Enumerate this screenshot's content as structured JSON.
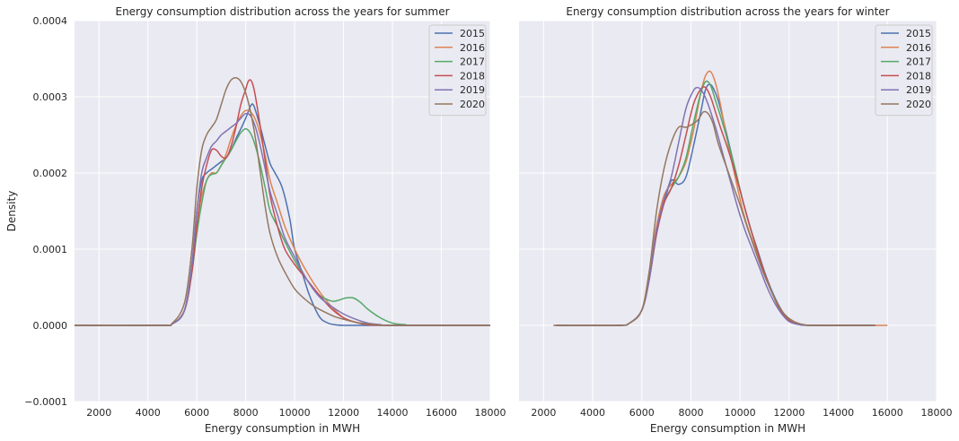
{
  "chart_data": [
    {
      "type": "line",
      "title": "Energy consumption distribution across the years for summer",
      "xlabel": "Energy consumption in MWH",
      "ylabel": "Density",
      "xlim": [
        1000,
        18000
      ],
      "ylim": [
        -0.0001,
        0.0004
      ],
      "xticks": [
        "2000",
        "4000",
        "6000",
        "8000",
        "10000",
        "12000",
        "14000",
        "16000",
        "18000"
      ],
      "yticks": [
        "−0.0001",
        "0.0000",
        "0.0001",
        "0.0002",
        "0.0003",
        "0.0004"
      ],
      "legend_position": "top-right",
      "grid": true,
      "series": [
        {
          "name": "2015",
          "color": "#4c72b0",
          "x": [
            1000,
            4500,
            5000,
            5500,
            5800,
            6000,
            6200,
            6400,
            6600,
            6800,
            7000,
            7200,
            7400,
            7600,
            7800,
            8000,
            8200,
            8300,
            8400,
            8600,
            8800,
            9000,
            9200,
            9500,
            9800,
            10000,
            10300,
            10600,
            11000,
            11300,
            11600,
            12000,
            12500,
            13000,
            14000,
            18000
          ],
          "y": [
            0,
            0,
            2e-06,
            2e-05,
            8e-05,
            0.00015,
            0.00019,
            0.0002,
            0.000205,
            0.00021,
            0.000215,
            0.00022,
            0.00023,
            0.000245,
            0.000258,
            0.000272,
            0.000288,
            0.00029,
            0.000282,
            0.00026,
            0.000235,
            0.000212,
            0.0002,
            0.00018,
            0.00014,
            0.0001,
            7e-05,
            4e-05,
            1.2e-05,
            4e-06,
            1e-06,
            0,
            0,
            0,
            0,
            0
          ]
        },
        {
          "name": "2016",
          "color": "#dd8452",
          "x": [
            1000,
            4500,
            5000,
            5500,
            5800,
            6000,
            6200,
            6400,
            6600,
            6800,
            7000,
            7200,
            7400,
            7600,
            7800,
            8000,
            8200,
            8400,
            8600,
            8800,
            9000,
            9300,
            9600,
            10000,
            10500,
            11000,
            11500,
            12000,
            12500,
            13000,
            14000,
            18000
          ],
          "y": [
            0,
            0,
            2e-06,
            2e-05,
            7e-05,
            0.00013,
            0.00017,
            0.00019,
            0.0002,
            0.0002,
            0.00021,
            0.000225,
            0.000245,
            0.000262,
            0.000275,
            0.000282,
            0.00028,
            0.00027,
            0.00025,
            0.000222,
            0.00019,
            0.00016,
            0.00013,
            0.0001,
            7e-05,
            4.5e-05,
            2.5e-05,
            1e-05,
            4e-06,
            1e-06,
            0,
            0
          ]
        },
        {
          "name": "2017",
          "color": "#55a868",
          "x": [
            1000,
            4500,
            5000,
            5500,
            5800,
            6000,
            6200,
            6400,
            6600,
            6800,
            7000,
            7200,
            7400,
            7600,
            7800,
            8000,
            8200,
            8400,
            8600,
            8800,
            9000,
            9300,
            9600,
            10000,
            10500,
            11000,
            11500,
            11800,
            12100,
            12400,
            12700,
            13000,
            13500,
            14000,
            14500,
            15000,
            18000
          ],
          "y": [
            0,
            0,
            2e-06,
            2e-05,
            7e-05,
            0.00012,
            0.00016,
            0.00019,
            0.000198,
            0.0002,
            0.00021,
            0.00022,
            0.00023,
            0.000242,
            0.000253,
            0.000258,
            0.000252,
            0.000235,
            0.00021,
            0.00018,
            0.00015,
            0.00013,
            0.00011,
            8.5e-05,
            6e-05,
            4e-05,
            3.2e-05,
            3.3e-05,
            3.6e-05,
            3.6e-05,
            3e-05,
            2.1e-05,
            1e-05,
            3e-06,
            1e-06,
            0,
            0
          ]
        },
        {
          "name": "2018",
          "color": "#c44e52",
          "x": [
            1000,
            4500,
            5000,
            5500,
            5800,
            6000,
            6200,
            6400,
            6600,
            6800,
            7000,
            7200,
            7400,
            7600,
            7800,
            8000,
            8100,
            8200,
            8300,
            8400,
            8600,
            8800,
            9000,
            9300,
            9600,
            10000,
            10500,
            11000,
            11500,
            12000,
            12500,
            13000,
            14000,
            18000
          ],
          "y": [
            0,
            0,
            2e-06,
            2e-05,
            7e-05,
            0.00013,
            0.00018,
            0.00021,
            0.00023,
            0.00023,
            0.000222,
            0.00022,
            0.000235,
            0.00026,
            0.00029,
            0.00031,
            0.00032,
            0.000322,
            0.000315,
            0.0003,
            0.00026,
            0.000215,
            0.00017,
            0.00013,
            0.0001,
            8e-05,
            6e-05,
            4e-05,
            2.2e-05,
            1e-05,
            4e-06,
            1e-06,
            0,
            0
          ]
        },
        {
          "name": "2019",
          "color": "#8172b3",
          "x": [
            1000,
            4500,
            5000,
            5500,
            5800,
            6000,
            6200,
            6400,
            6600,
            6800,
            7000,
            7200,
            7400,
            7600,
            7800,
            8000,
            8200,
            8400,
            8600,
            8800,
            9000,
            9300,
            9600,
            10000,
            10500,
            11000,
            11500,
            12000,
            12500,
            13000,
            13500,
            14000,
            18000
          ],
          "y": [
            0,
            0,
            2e-06,
            2e-05,
            8e-05,
            0.00015,
            0.0002,
            0.00022,
            0.000235,
            0.000242,
            0.00025,
            0.000255,
            0.00026,
            0.000265,
            0.000272,
            0.000278,
            0.000275,
            0.00026,
            0.000235,
            0.000205,
            0.000175,
            0.000145,
            0.000115,
            9e-05,
            6e-05,
            3.8e-05,
            2.5e-05,
            1.5e-05,
            8e-06,
            3e-06,
            1e-06,
            0,
            0
          ]
        },
        {
          "name": "2020",
          "color": "#937860",
          "x": [
            1000,
            4500,
            5000,
            5500,
            5800,
            6000,
            6200,
            6400,
            6600,
            6800,
            7000,
            7200,
            7400,
            7600,
            7800,
            8000,
            8200,
            8400,
            8600,
            8800,
            9000,
            9300,
            9600,
            10000,
            10400,
            10800,
            11200,
            11600,
            12000,
            12500,
            13000,
            13500,
            14000,
            18000
          ],
          "y": [
            0,
            0,
            3e-06,
            3e-05,
            0.0001,
            0.00018,
            0.00023,
            0.00025,
            0.00026,
            0.00027,
            0.00029,
            0.00031,
            0.000322,
            0.000325,
            0.00032,
            0.000305,
            0.00028,
            0.000245,
            0.0002,
            0.000155,
            0.00012,
            9e-05,
            7e-05,
            4.8e-05,
            3.5e-05,
            2.5e-05,
            1.8e-05,
            1.2e-05,
            8e-06,
            4e-06,
            2e-06,
            5e-07,
            0,
            0
          ]
        }
      ]
    },
    {
      "type": "line",
      "title": "Energy consumption distribution across the years for winter",
      "xlabel": "Energy consumption in MWH",
      "ylabel": "",
      "xlim": [
        1000,
        18000
      ],
      "ylim": [
        -0.0001,
        0.0004
      ],
      "xticks": [
        "2000",
        "4000",
        "6000",
        "8000",
        "10000",
        "12000",
        "14000",
        "16000",
        "18000"
      ],
      "yticks": [],
      "legend_position": "top-right",
      "grid": true,
      "series": [
        {
          "name": "2015",
          "color": "#4c72b0",
          "x": [
            2500,
            5000,
            5500,
            6000,
            6300,
            6600,
            6900,
            7200,
            7500,
            7800,
            8100,
            8400,
            8600,
            8800,
            9000,
            9200,
            9500,
            9800,
            10100,
            10400,
            10700,
            11000,
            11300,
            11600,
            11900,
            12300,
            13000,
            15500
          ],
          "y": [
            0,
            0,
            3e-06,
            2e-05,
            6e-05,
            0.00012,
            0.00016,
            0.00019,
            0.000185,
            0.000195,
            0.000235,
            0.00028,
            0.00031,
            0.000316,
            0.000305,
            0.000285,
            0.000245,
            0.000205,
            0.000165,
            0.00013,
            0.0001,
            7e-05,
            4.5e-05,
            2.5e-05,
            1e-05,
            2e-06,
            0,
            0
          ]
        },
        {
          "name": "2016",
          "color": "#dd8452",
          "x": [
            2500,
            5000,
            5500,
            6000,
            6300,
            6600,
            6900,
            7200,
            7500,
            7800,
            8100,
            8400,
            8600,
            8800,
            9000,
            9200,
            9500,
            9800,
            10100,
            10400,
            10700,
            11000,
            11300,
            11600,
            12000,
            12500,
            13500,
            16000
          ],
          "y": [
            0,
            0,
            3e-06,
            2e-05,
            7e-05,
            0.00013,
            0.00017,
            0.000185,
            0.000195,
            0.000215,
            0.000255,
            0.000305,
            0.000328,
            0.000333,
            0.000318,
            0.00029,
            0.00024,
            0.000195,
            0.000152,
            0.00012,
            9.5e-05,
            6.8e-05,
            4.3e-05,
            2.2e-05,
            7e-06,
            1e-06,
            0,
            0
          ]
        },
        {
          "name": "2017",
          "color": "#55a868",
          "x": [
            2500,
            5000,
            5500,
            6000,
            6300,
            6600,
            6900,
            7200,
            7500,
            7800,
            8100,
            8400,
            8600,
            8800,
            9000,
            9200,
            9500,
            9800,
            10100,
            10400,
            10700,
            11000,
            11300,
            11600,
            11900,
            12300,
            13000,
            15500
          ],
          "y": [
            0,
            0,
            3e-06,
            2e-05,
            6e-05,
            0.00012,
            0.00016,
            0.00018,
            0.000195,
            0.00022,
            0.000265,
            0.000305,
            0.00032,
            0.000315,
            0.000295,
            0.000275,
            0.000242,
            0.000205,
            0.000165,
            0.00013,
            9.8e-05,
            6.8e-05,
            4.3e-05,
            2.3e-05,
            9e-06,
            2e-06,
            0,
            0
          ]
        },
        {
          "name": "2018",
          "color": "#c44e52",
          "x": [
            2500,
            5000,
            5500,
            6000,
            6300,
            6600,
            6900,
            7200,
            7500,
            7800,
            8100,
            8400,
            8600,
            8800,
            9000,
            9200,
            9500,
            9800,
            10100,
            10400,
            10700,
            11000,
            11300,
            11600,
            11900,
            12300,
            13000,
            15500
          ],
          "y": [
            0,
            0,
            3e-06,
            2e-05,
            6e-05,
            0.00012,
            0.00016,
            0.00018,
            0.00021,
            0.00025,
            0.00029,
            0.00031,
            0.000312,
            0.0003,
            0.00028,
            0.00026,
            0.000232,
            0.0002,
            0.000165,
            0.00013,
            9.8e-05,
            6.8e-05,
            4.3e-05,
            2.3e-05,
            9e-06,
            2e-06,
            0,
            0
          ]
        },
        {
          "name": "2019",
          "color": "#8172b3",
          "x": [
            2500,
            5000,
            5500,
            6000,
            6300,
            6600,
            6900,
            7200,
            7500,
            7800,
            8100,
            8300,
            8500,
            8700,
            9000,
            9300,
            9600,
            9900,
            10200,
            10500,
            10800,
            11100,
            11400,
            11700,
            12000,
            12400,
            13000,
            15500
          ],
          "y": [
            0,
            0,
            3e-06,
            2e-05,
            6e-05,
            0.000125,
            0.000165,
            0.000195,
            0.00024,
            0.000285,
            0.000308,
            0.000312,
            0.000305,
            0.00029,
            0.00026,
            0.000225,
            0.00019,
            0.000155,
            0.000125,
            0.0001,
            7.5e-05,
            5e-05,
            3e-05,
            1.5e-05,
            5e-06,
            1e-06,
            0,
            0
          ]
        },
        {
          "name": "2020",
          "color": "#937860",
          "x": [
            2400,
            5000,
            5500,
            6000,
            6300,
            6600,
            6900,
            7200,
            7500,
            7800,
            8100,
            8300,
            8500,
            8700,
            8900,
            9100,
            9400,
            9700,
            10000,
            10300,
            10600,
            10900,
            11200,
            11500,
            11800,
            12200,
            12600,
            13000,
            15500
          ],
          "y": [
            0,
            0,
            3e-06,
            2e-05,
            7e-05,
            0.00015,
            0.000205,
            0.00024,
            0.00026,
            0.00026,
            0.000265,
            0.00027,
            0.00028,
            0.000278,
            0.000265,
            0.00024,
            0.000212,
            0.000185,
            0.000158,
            0.000128,
            0.0001,
            7.3e-05,
            5e-05,
            3e-05,
            1.5e-05,
            5e-06,
            1e-06,
            0,
            0
          ]
        }
      ]
    }
  ]
}
